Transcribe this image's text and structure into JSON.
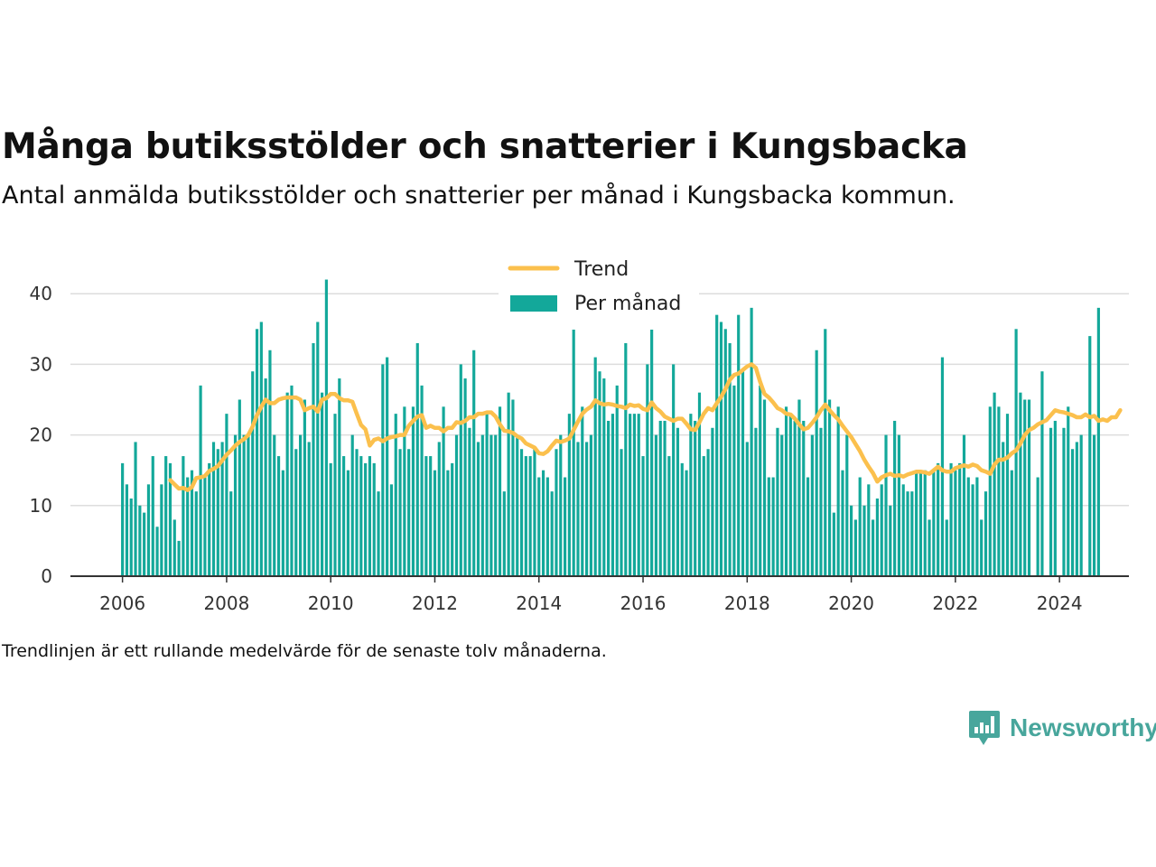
{
  "title": "Många butiksstölder och snatterier i Kungsbacka",
  "subtitle": "Antal anmälda butiksstölder och snatterier per månad i Kungsbacka kommun.",
  "note": "Trendlinjen är ett rullande medelvärde för de senaste tolv månaderna.",
  "brand": {
    "name": "Newsworthy"
  },
  "colors": {
    "bars": "#13a89a",
    "trend": "#fbc04d",
    "grid": "#dddddd",
    "axis": "#333333"
  },
  "chart_data": {
    "type": "bar",
    "title": "Många butiksstölder och snatterier i Kungsbacka",
    "subtitle": "Antal anmälda butiksstölder och snatterier per månad i Kungsbacka kommun.",
    "start": "2006-01",
    "xlim": [
      "2005-01",
      "2025-05"
    ],
    "ylim": [
      0,
      45
    ],
    "x_ticks": [
      "2006",
      "2008",
      "2010",
      "2012",
      "2014",
      "2016",
      "2018",
      "2020",
      "2022",
      "2024"
    ],
    "y_ticks": [
      0,
      10,
      20,
      30,
      40
    ],
    "grid": true,
    "legend_position": "top-center",
    "series": [
      {
        "name": "Per månad",
        "type": "bar",
        "values": [
          16,
          13,
          11,
          19,
          10,
          9,
          13,
          17,
          7,
          13,
          17,
          16,
          8,
          5,
          17,
          14,
          15,
          12,
          27,
          14,
          16,
          19,
          18,
          19,
          23,
          12,
          20,
          25,
          20,
          20,
          29,
          35,
          36,
          28,
          32,
          20,
          17,
          15,
          26,
          27,
          18,
          20,
          25,
          19,
          33,
          36,
          26,
          42,
          16,
          23,
          28,
          17,
          15,
          20,
          18,
          17,
          16,
          17,
          16,
          12,
          30,
          31,
          13,
          23,
          18,
          24,
          18,
          24,
          33,
          27,
          17,
          17,
          15,
          19,
          24,
          15,
          16,
          20,
          30,
          28,
          21,
          32,
          19,
          20,
          23,
          20,
          20,
          24,
          12,
          26,
          25,
          20,
          18,
          17,
          17,
          18,
          14,
          15,
          14,
          12,
          18,
          20,
          14,
          23,
          35,
          19,
          24,
          19,
          20,
          31,
          29,
          28,
          22,
          23,
          27,
          18,
          33,
          23,
          23,
          23,
          17,
          30,
          35,
          20,
          22,
          22,
          17,
          30,
          21,
          16,
          15,
          23,
          22,
          26,
          17,
          18,
          21,
          37,
          36,
          35,
          33,
          27,
          37,
          29,
          19,
          38,
          21,
          27,
          25,
          14,
          14,
          21,
          20,
          24,
          23,
          22,
          25,
          22,
          14,
          20,
          32,
          21,
          35,
          25,
          9,
          24,
          15,
          20,
          10,
          8,
          14,
          10,
          13,
          8,
          11,
          13,
          20,
          10,
          22,
          20,
          13,
          12,
          12,
          15,
          15,
          15,
          8,
          15,
          16,
          31,
          8,
          16,
          15,
          16,
          20,
          14,
          13,
          14,
          8,
          12,
          24,
          26,
          24,
          19,
          23,
          15,
          35,
          26,
          25,
          25,
          null,
          14,
          29,
          null,
          21,
          22,
          null,
          21,
          24,
          18,
          19,
          20,
          null,
          34,
          20,
          38
        ]
      },
      {
        "name": "Trend",
        "type": "line",
        "start": "2006-12",
        "values": [
          13.6,
          13.0,
          12.4,
          12.5,
          12.2,
          12.6,
          13.9,
          14.0,
          14.2,
          14.9,
          15.2,
          15.6,
          16.4,
          17.2,
          17.8,
          18.5,
          19.0,
          19.4,
          20.0,
          21.2,
          22.8,
          24.0,
          25.0,
          24.5,
          24.5,
          25.0,
          25.2,
          25.3,
          25.3,
          25.3,
          25.0,
          23.5,
          23.8,
          24.0,
          23.3,
          25.0,
          25.2,
          25.8,
          25.8,
          25.2,
          24.9,
          24.9,
          24.7,
          23.0,
          21.4,
          20.8,
          18.5,
          19.3,
          19.5,
          19.1,
          19.5,
          19.7,
          19.8,
          20.0,
          20.0,
          21.3,
          22.0,
          22.6,
          22.8,
          21.0,
          21.3,
          21.0,
          21.0,
          20.5,
          21.0,
          21.0,
          21.8,
          21.7,
          22.0,
          22.5,
          22.5,
          23.0,
          23.0,
          23.2,
          23.2,
          22.6,
          21.5,
          20.6,
          20.5,
          20.3,
          19.8,
          19.5,
          18.8,
          18.5,
          18.2,
          17.4,
          17.3,
          17.7,
          18.5,
          19.2,
          19.0,
          19.2,
          19.5,
          20.7,
          21.9,
          23.0,
          23.6,
          24.0,
          24.9,
          24.5,
          24.3,
          24.4,
          24.3,
          24.1,
          24.0,
          23.8,
          24.3,
          24.1,
          24.2,
          23.7,
          23.5,
          24.6,
          23.8,
          23.3,
          22.6,
          22.3,
          22.0,
          22.3,
          22.3,
          21.6,
          20.8,
          20.7,
          21.8,
          23.0,
          23.8,
          23.5,
          24.5,
          25.4,
          26.5,
          27.8,
          28.5,
          28.7,
          29.2,
          29.7,
          30.0,
          29.5,
          27.5,
          25.8,
          25.3,
          24.6,
          23.8,
          23.5,
          23.0,
          22.9,
          22.3,
          21.5,
          20.8,
          21.0,
          21.7,
          22.5,
          23.5,
          24.3,
          23.5,
          22.8,
          22.2,
          21.3,
          20.5,
          19.7,
          18.7,
          17.7,
          16.5,
          15.5,
          14.6,
          13.4,
          14.0,
          14.3,
          14.5,
          14.2,
          14.3,
          14.1,
          14.4,
          14.6,
          14.8,
          14.8,
          14.7,
          14.5,
          15.0,
          15.5,
          15.0,
          14.8,
          14.8,
          15.3,
          15.5,
          15.7,
          15.5,
          15.8,
          15.6,
          15.0,
          14.8,
          14.5,
          15.8,
          16.5,
          16.5,
          16.8,
          17.4,
          17.8,
          18.8,
          20.0,
          20.7,
          21.0,
          21.5,
          21.8,
          22.1,
          22.8,
          23.5,
          23.3,
          23.2,
          23.0,
          22.8,
          22.5,
          22.5,
          22.9,
          22.5,
          22.7,
          22.0,
          22.2,
          22.0,
          22.5,
          22.5,
          23.5
        ]
      }
    ]
  }
}
